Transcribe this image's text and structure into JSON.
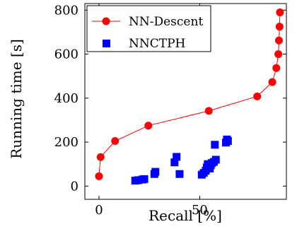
{
  "chart_data": {
    "type": "scatter",
    "title": "",
    "xlabel": "Recall [%]",
    "ylabel": "Running time [s]",
    "xlim": [
      -7,
      93
    ],
    "ylim": [
      -60,
      830
    ],
    "xticks": [
      0,
      50
    ],
    "yticks": [
      0,
      200,
      400,
      600,
      800
    ],
    "grid": false,
    "legend_position": "top-left",
    "series": [
      {
        "name": "NN-Descent",
        "style": "line-with-circle-markers",
        "color": "#ff0000",
        "points": [
          {
            "x": 0,
            "y": 45
          },
          {
            "x": 0.8,
            "y": 132
          },
          {
            "x": 8,
            "y": 205
          },
          {
            "x": 24.5,
            "y": 275
          },
          {
            "x": 54.5,
            "y": 342
          },
          {
            "x": 78.5,
            "y": 408
          },
          {
            "x": 86,
            "y": 473
          },
          {
            "x": 88,
            "y": 537
          },
          {
            "x": 89,
            "y": 600
          },
          {
            "x": 89.3,
            "y": 662
          },
          {
            "x": 89.6,
            "y": 725
          },
          {
            "x": 89.8,
            "y": 790
          }
        ]
      },
      {
        "name": "NNCTPH",
        "style": "square-markers",
        "color": "#0000ff",
        "points": [
          {
            "x": 18,
            "y": 25
          },
          {
            "x": 19.5,
            "y": 27
          },
          {
            "x": 21.5,
            "y": 30
          },
          {
            "x": 22.5,
            "y": 32
          },
          {
            "x": 27.5,
            "y": 55
          },
          {
            "x": 28,
            "y": 65
          },
          {
            "x": 37.5,
            "y": 108
          },
          {
            "x": 38.5,
            "y": 133
          },
          {
            "x": 40,
            "y": 55
          },
          {
            "x": 51,
            "y": 52
          },
          {
            "x": 52,
            "y": 60
          },
          {
            "x": 53,
            "y": 70
          },
          {
            "x": 53.5,
            "y": 85
          },
          {
            "x": 54,
            "y": 100
          },
          {
            "x": 55,
            "y": 80
          },
          {
            "x": 55.5,
            "y": 95
          },
          {
            "x": 56,
            "y": 105
          },
          {
            "x": 57,
            "y": 110
          },
          {
            "x": 57.5,
            "y": 188
          },
          {
            "x": 58,
            "y": 120
          },
          {
            "x": 63,
            "y": 198
          },
          {
            "x": 63.5,
            "y": 212
          },
          {
            "x": 64,
            "y": 205
          }
        ]
      }
    ]
  }
}
